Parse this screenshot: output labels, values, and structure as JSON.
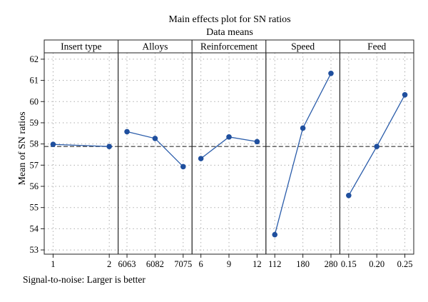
{
  "chart_data": {
    "type": "line",
    "title": "Main effects plot for SN ratios",
    "subtitle": "Data means",
    "ylabel": "Mean of SN ratios",
    "ylim": [
      52.8,
      62.3
    ],
    "yticks": [
      53,
      54,
      55,
      56,
      57,
      58,
      59,
      60,
      61,
      62
    ],
    "reference_line": 57.88,
    "grid": true,
    "footnote": "Signal-to-noise: Larger is better",
    "panels": [
      {
        "name": "Insert type",
        "categories": [
          "1",
          "2"
        ],
        "values": [
          57.98,
          57.88
        ]
      },
      {
        "name": "Alloys",
        "categories": [
          "6063",
          "6082",
          "7075"
        ],
        "values": [
          58.58,
          58.26,
          56.93
        ]
      },
      {
        "name": "Reinforcement",
        "categories": [
          "6",
          "9",
          "12"
        ],
        "values": [
          57.31,
          58.33,
          58.11
        ]
      },
      {
        "name": "Speed",
        "categories": [
          "112",
          "180",
          "280"
        ],
        "values": [
          53.72,
          58.75,
          61.33
        ]
      },
      {
        "name": "Feed",
        "categories": [
          "0.15",
          "0.20",
          "0.25"
        ],
        "values": [
          55.57,
          57.88,
          60.32
        ]
      }
    ]
  },
  "colors": {
    "series": "#2a5caa",
    "point": "#1f4f9e",
    "frame": "#222222",
    "grid": "#9a9a9a",
    "reference": "#333333"
  }
}
